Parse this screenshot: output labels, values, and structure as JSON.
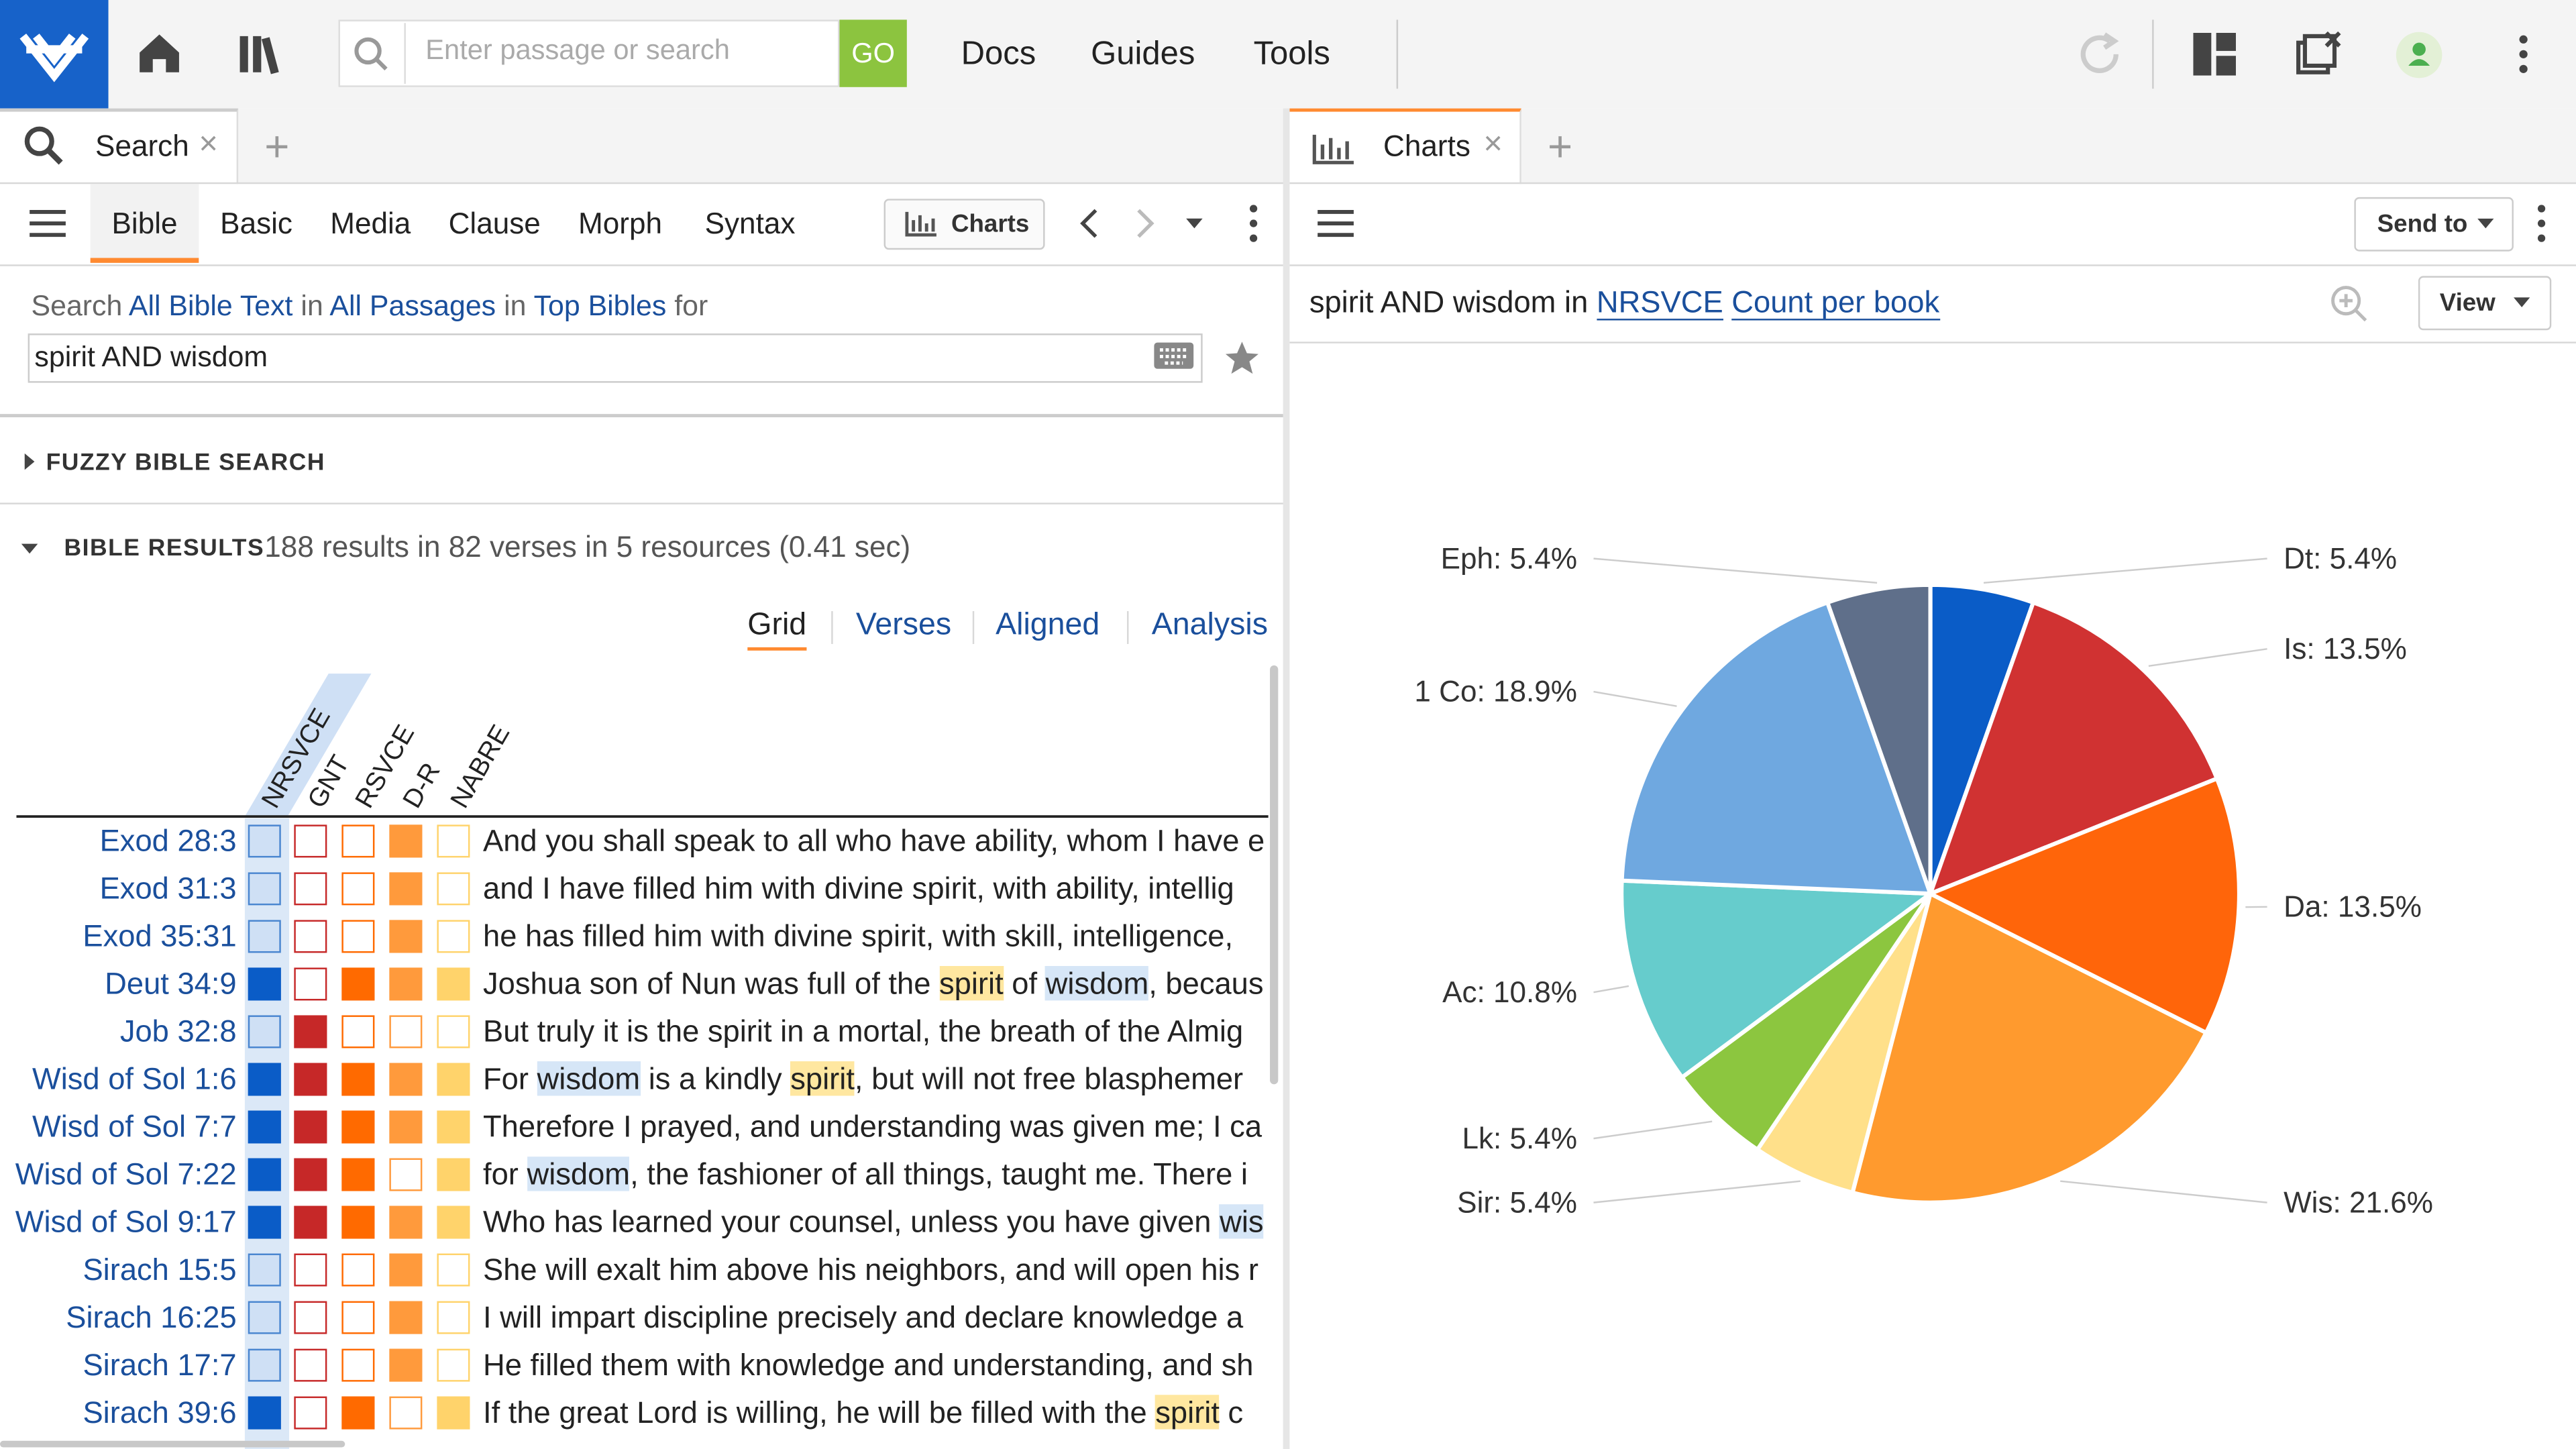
{
  "toolbar": {
    "search_placeholder": "Enter passage or search",
    "go": "GO",
    "menu": [
      "Docs",
      "Guides",
      "Tools"
    ]
  },
  "left_panel": {
    "tab": "Search",
    "search_types": [
      "Bible",
      "Basic",
      "Media",
      "Clause",
      "Morph",
      "Syntax"
    ],
    "charts_button": "Charts",
    "scope": {
      "search": "Search",
      "resource": "All Bible Text",
      "in_1": "in",
      "range": "All Passages",
      "in_2": "in",
      "collection": "Top Bibles",
      "for": "for"
    },
    "query": "spirit AND wisdom",
    "fuzzy": "FUZZY BIBLE SEARCH",
    "results_heading": "BIBLE RESULTS",
    "results_summary": "188 results in 82 verses in 5 resources (0.41 sec)",
    "views": [
      "Grid",
      "Verses",
      "Aligned",
      "Analysis"
    ],
    "columns": [
      {
        "name": "NRSVCE",
        "color": "#0a5cc7",
        "light": "#cfe0f5"
      },
      {
        "name": "GNT",
        "color": "#c62828",
        "light": "#ffffff"
      },
      {
        "name": "RSVCE",
        "color": "#ff6a00",
        "light": "#ffffff"
      },
      {
        "name": "D-R",
        "color": "#ff9a3c",
        "light": "#ffffff"
      },
      {
        "name": "NABRE",
        "color": "#ffd36b",
        "light": "#ffffff"
      }
    ],
    "rows": [
      {
        "ref": "Exod 28:3",
        "hits": [
          false,
          false,
          false,
          true,
          false
        ],
        "text": [
          "And you shall speak to all who have ability, whom I have e"
        ]
      },
      {
        "ref": "Exod 31:3",
        "hits": [
          false,
          false,
          false,
          true,
          false
        ],
        "text": [
          "and I have filled him with divine spirit, with ability, intellig"
        ]
      },
      {
        "ref": "Exod 35:31",
        "hits": [
          false,
          false,
          false,
          true,
          false
        ],
        "text": [
          "he has filled him with divine spirit, with skill, intelligence,"
        ]
      },
      {
        "ref": "Deut 34:9",
        "hits": [
          true,
          false,
          true,
          true,
          true
        ],
        "text": [
          "Joshua son of Nun was full of the ",
          {
            "text": "spirit",
            "hl": "#ffe7a0"
          },
          " of ",
          {
            "text": "wisdom",
            "hl": "#d6e6f7"
          },
          ", becaus"
        ]
      },
      {
        "ref": "Job 32:8",
        "hits": [
          false,
          true,
          false,
          false,
          false
        ],
        "text": [
          "But truly it is the spirit in a mortal, the breath of the Almig"
        ]
      },
      {
        "ref": "Wisd of Sol 1:6",
        "hits": [
          true,
          true,
          true,
          true,
          true
        ],
        "text": [
          "For ",
          {
            "text": "wisdom",
            "hl": "#d6e6f7"
          },
          " is a kindly ",
          {
            "text": "spirit",
            "hl": "#ffe7a0"
          },
          ", but will not free blasphemer"
        ]
      },
      {
        "ref": "Wisd of Sol 7:7",
        "hits": [
          true,
          true,
          true,
          true,
          true
        ],
        "text": [
          "Therefore I prayed, and understanding was given me; I ca"
        ]
      },
      {
        "ref": "Wisd of Sol 7:22",
        "hits": [
          true,
          true,
          true,
          false,
          true
        ],
        "text": [
          "for ",
          {
            "text": "wisdom",
            "hl": "#d6e6f7"
          },
          ", the fashioner of all things, taught me. There i"
        ]
      },
      {
        "ref": "Wisd of Sol 9:17",
        "hits": [
          true,
          true,
          true,
          true,
          true
        ],
        "text": [
          "Who has learned your counsel, unless you have given ",
          {
            "text": "wis",
            "hl": "#d6e6f7"
          }
        ]
      },
      {
        "ref": "Sirach 15:5",
        "hits": [
          false,
          false,
          false,
          true,
          false
        ],
        "text": [
          "She will exalt him above his neighbors, and will open his r"
        ]
      },
      {
        "ref": "Sirach 16:25",
        "hits": [
          false,
          false,
          false,
          true,
          false
        ],
        "text": [
          "I will impart discipline precisely and declare knowledge a"
        ]
      },
      {
        "ref": "Sirach 17:7",
        "hits": [
          false,
          false,
          false,
          true,
          false
        ],
        "text": [
          "He filled them with knowledge and understanding, and sh"
        ]
      },
      {
        "ref": "Sirach 39:6",
        "hits": [
          true,
          false,
          true,
          false,
          true
        ],
        "text": [
          "If the great Lord is willing, he will be filled with the ",
          {
            "text": "spirit",
            "hl": "#ffe7a0"
          },
          " c"
        ]
      }
    ]
  },
  "right_panel": {
    "tab": "Charts",
    "send_to": "Send to",
    "query": "spirit AND wisdom",
    "in": "in",
    "resource": "NRSVCE",
    "chart_kind": "Count per book",
    "view": "View"
  },
  "chart_data": {
    "type": "pie",
    "values": [
      5.4,
      13.5,
      13.5,
      21.6,
      5.4,
      5.4,
      10.8,
      18.9,
      5.4
    ],
    "value_labels": [
      "Dt: 5.4%",
      "Is: 13.5%",
      "Da: 13.5%",
      "Wis: 21.6%",
      "Sir: 5.4%",
      "Lk: 5.4%",
      "Ac: 10.8%",
      "1 Co: 18.9%",
      "Eph: 5.4%"
    ],
    "colors": [
      "#0a5cc7",
      "#d03232",
      "#ff650a",
      "#ff9a2e",
      "#ffe08a",
      "#8cc63f",
      "#66cccc",
      "#6fa8e0",
      "#5f6f8a"
    ]
  }
}
